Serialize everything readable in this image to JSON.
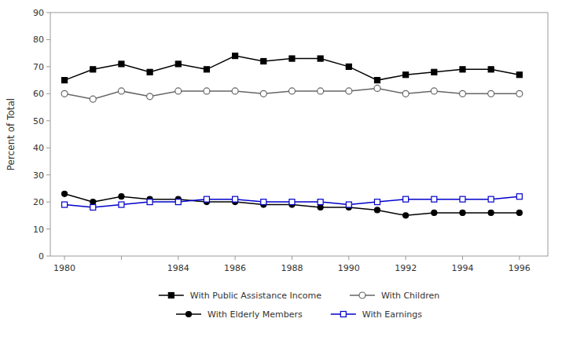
{
  "chart_data": {
    "type": "line",
    "y_label": "Percent of Total",
    "x": [
      1980,
      1981,
      1982,
      1983,
      1984,
      1985,
      1986,
      1987,
      1988,
      1989,
      1990,
      1991,
      1992,
      1993,
      1994,
      1995,
      1996
    ],
    "xlim": [
      1979.5,
      1997.0
    ],
    "xticks": [
      1980,
      {
        "value": 1982,
        "label": null
      },
      1984,
      1986,
      1988,
      1990,
      1992,
      1994,
      1996
    ],
    "ylim": [
      0,
      90
    ],
    "yticks": [
      0,
      10,
      20,
      30,
      40,
      50,
      60,
      70,
      80,
      90
    ],
    "grid": false,
    "legend": "bottom",
    "series": [
      {
        "name": "With Public Assistance Income",
        "color": "#000000",
        "marker": "square",
        "values": [
          65,
          69,
          71,
          68,
          71,
          69,
          74,
          72,
          73,
          73,
          70,
          65,
          67,
          68,
          69,
          69,
          67
        ]
      },
      {
        "name": "With Children",
        "color": "#666666",
        "marker": "circle-open",
        "values": [
          60,
          58,
          61,
          59,
          61,
          61,
          61,
          60,
          61,
          61,
          61,
          62,
          60,
          61,
          60,
          60,
          60
        ]
      },
      {
        "name": "With Elderly Members",
        "color": "#000000",
        "marker": "circle",
        "values": [
          23,
          20,
          22,
          21,
          21,
          20,
          20,
          19,
          19,
          18,
          18,
          17,
          15,
          16,
          16,
          16,
          16
        ]
      },
      {
        "name": "With Earnings",
        "color": "#0000cc",
        "marker": "square-open",
        "values": [
          19,
          18,
          19,
          20,
          20,
          21,
          21,
          20,
          20,
          20,
          19,
          20,
          21,
          21,
          21,
          21,
          22
        ]
      }
    ]
  }
}
